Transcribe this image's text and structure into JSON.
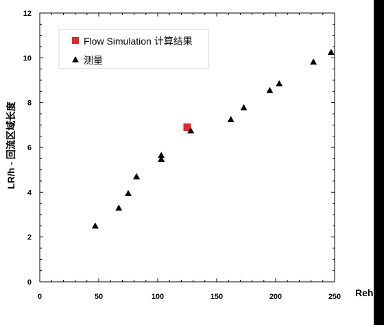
{
  "chart_data": {
    "type": "scatter",
    "title": "",
    "xlabel": "Reh",
    "ylabel": "LR/h - 回流区域长度",
    "xlim": [
      0,
      250
    ],
    "ylim": [
      0,
      12
    ],
    "x_ticks": [
      "0",
      "50",
      "100",
      "150",
      "200",
      "250"
    ],
    "y_ticks": [
      "0",
      "2",
      "4",
      "6",
      "8",
      "10",
      "12"
    ],
    "grid": false,
    "legend_position": "top-left",
    "series": [
      {
        "name": "Flow Simulation 计算结果",
        "marker": "square",
        "color": "#e8262a",
        "points": [
          [
            125,
            6.9
          ]
        ]
      },
      {
        "name": "测量",
        "marker": "triangle",
        "color": "#000000",
        "points": [
          [
            47,
            2.5
          ],
          [
            67,
            3.3
          ],
          [
            75,
            3.95
          ],
          [
            82,
            4.7
          ],
          [
            103,
            5.65
          ],
          [
            103,
            5.48
          ],
          [
            128,
            6.75
          ],
          [
            162,
            7.25
          ],
          [
            173,
            7.78
          ],
          [
            195,
            8.55
          ],
          [
            203,
            8.85
          ],
          [
            232,
            9.82
          ],
          [
            247,
            10.25
          ]
        ]
      }
    ]
  }
}
